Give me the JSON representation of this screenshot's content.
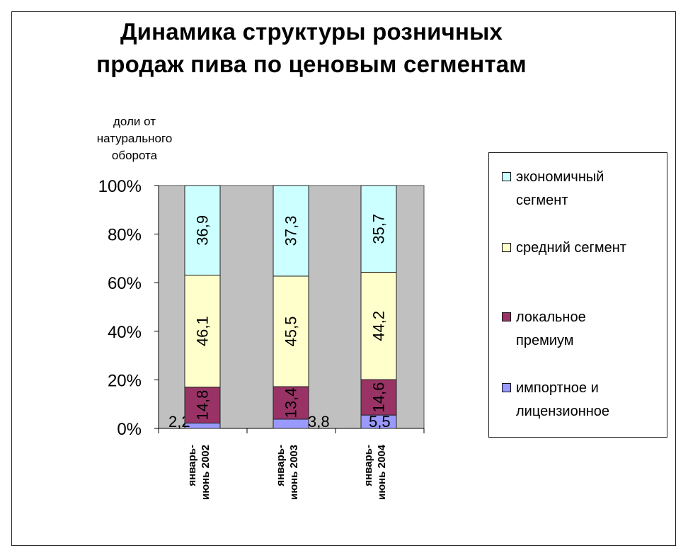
{
  "chart_data": {
    "type": "bar",
    "stacked": true,
    "percent": true,
    "title_lines": [
      "Динамика структуры розничных",
      "продаж пива по ценовым сегментам"
    ],
    "ylabel_lines": [
      "доли от",
      "натурального",
      "оборота"
    ],
    "ylim": [
      0,
      100
    ],
    "yticks": [
      "0%",
      "20%",
      "40%",
      "60%",
      "80%",
      "100%"
    ],
    "categories": [
      [
        "январь-",
        "июнь 2002"
      ],
      [
        "январь-",
        "июнь 2003"
      ],
      [
        "январь-",
        "июнь 2004"
      ]
    ],
    "series": [
      {
        "name": "импортное и лицензионное",
        "color": "#9999ff",
        "values": [
          2.2,
          3.8,
          5.5
        ],
        "labels": [
          "2,2",
          "3,8",
          "5,5"
        ]
      },
      {
        "name": "локальное премиум",
        "color": "#993366",
        "values": [
          14.8,
          13.4,
          14.6
        ],
        "labels": [
          "14,8",
          "13,4",
          "14,6"
        ]
      },
      {
        "name": "средний сегмент",
        "color": "#ffffcc",
        "values": [
          46.1,
          45.5,
          44.2
        ],
        "labels": [
          "46,1",
          "45,5",
          "44,2"
        ]
      },
      {
        "name": "экономичный сегмент",
        "color": "#ccffff",
        "values": [
          36.9,
          37.3,
          35.7
        ],
        "labels": [
          "36,9",
          "37,3",
          "35,7"
        ]
      }
    ],
    "plot_background": "#c0c0c0",
    "grid": false,
    "legend_position": "right"
  },
  "legend": {
    "economy": [
      "экономичный",
      "сегмент"
    ],
    "middle": [
      "средний сегмент"
    ],
    "local": [
      "локальное",
      "премиум"
    ],
    "import": [
      "импортное и",
      "лицензионное"
    ]
  }
}
